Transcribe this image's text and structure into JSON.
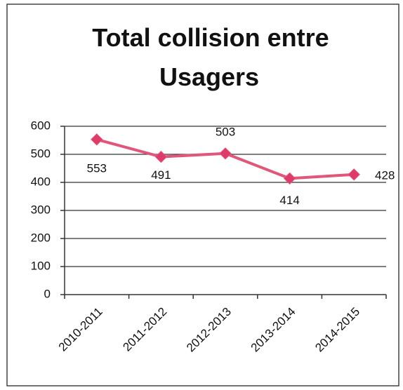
{
  "chart_data": {
    "type": "line",
    "title": [
      "Total collision entre",
      "Usagers"
    ],
    "categories": [
      "2010-2011",
      "2011-2012",
      "2012-2013",
      "2013-2014",
      "2014-2015"
    ],
    "series": [
      {
        "name": "Total collision entre Usagers",
        "color": "#e0577a",
        "marker_color": "#e03a6a",
        "values": [
          553,
          491,
          503,
          414,
          428
        ]
      }
    ],
    "ylim": [
      0,
      600
    ],
    "yticks": [
      0,
      100,
      200,
      300,
      400,
      500,
      600
    ],
    "grid": true,
    "legend": false
  }
}
